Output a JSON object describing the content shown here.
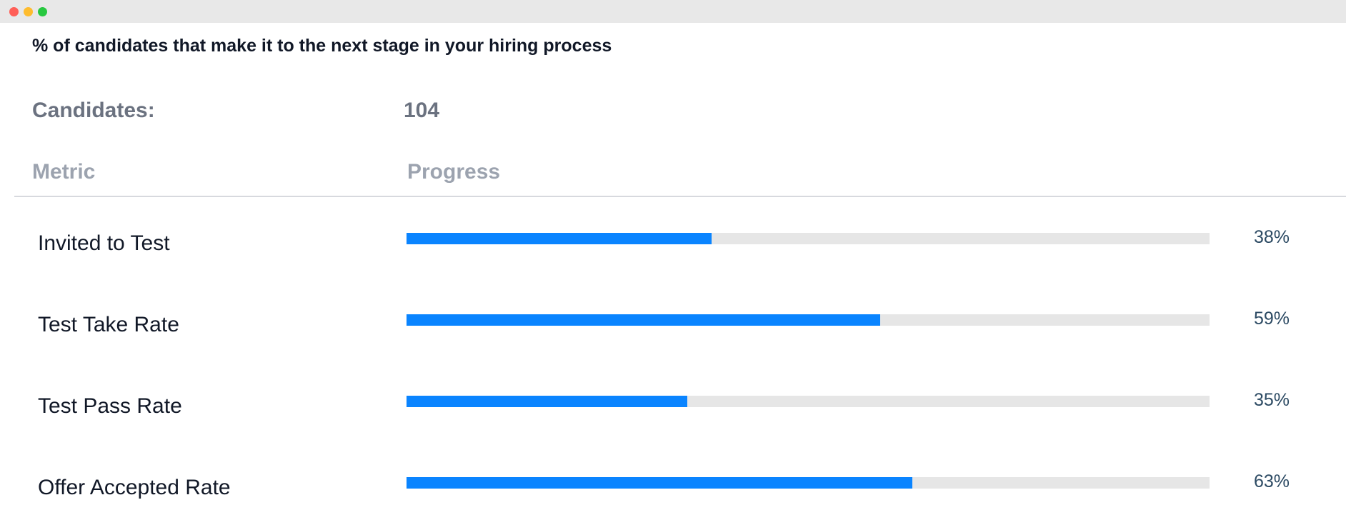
{
  "window": {
    "controls": [
      "close-button",
      "minimize-button",
      "maximize-button"
    ]
  },
  "header": {
    "subtitle": "% of candidates that make it to the next stage in your hiring process"
  },
  "summary": {
    "label": "Candidates:",
    "value": "104"
  },
  "table": {
    "columns": {
      "metric": "Metric",
      "progress": "Progress"
    },
    "rows": [
      {
        "label": "Invited to Test",
        "percent": 38,
        "percent_text": "38%"
      },
      {
        "label": "Test Take Rate",
        "percent": 59,
        "percent_text": "59%"
      },
      {
        "label": "Test Pass Rate",
        "percent": 35,
        "percent_text": "35%"
      },
      {
        "label": "Offer Accepted Rate",
        "percent": 63,
        "percent_text": "63%"
      }
    ]
  },
  "colors": {
    "bar_fill": "#0a84ff",
    "bar_track": "#e6e6e6",
    "percent_text": "#2c4a63"
  }
}
